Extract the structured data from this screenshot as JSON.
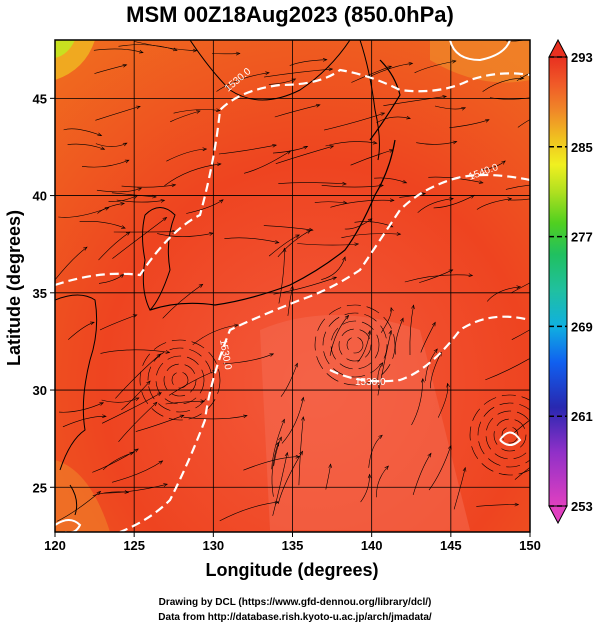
{
  "title": "MSM 00Z18Aug2023 (850.0hPa)",
  "x_axis": {
    "label": "Longitude (degrees)",
    "ticks": [
      {
        "value": 120,
        "label": "120"
      },
      {
        "value": 125,
        "label": "125"
      },
      {
        "value": 130,
        "label": "130"
      },
      {
        "value": 135,
        "label": "135"
      },
      {
        "value": 140,
        "label": "140"
      },
      {
        "value": 145,
        "label": "145"
      },
      {
        "value": 150,
        "label": "150"
      }
    ]
  },
  "y_axis": {
    "label": "Latitude  (degrees)",
    "ticks": [
      {
        "value": 25,
        "label": "25"
      },
      {
        "value": 30,
        "label": "30"
      },
      {
        "value": 35,
        "label": "35"
      },
      {
        "value": 40,
        "label": "40"
      },
      {
        "value": 45,
        "label": "45"
      }
    ]
  },
  "colorbar": {
    "min": 253,
    "max": 293,
    "ticks": [
      {
        "value": 293,
        "label": "293"
      },
      {
        "value": 285,
        "label": "285"
      },
      {
        "value": 277,
        "label": "277"
      },
      {
        "value": 269,
        "label": "269"
      },
      {
        "value": 261,
        "label": "261"
      },
      {
        "value": 253,
        "label": "253"
      }
    ],
    "colors": [
      "#e040c0",
      "#b040d0",
      "#3030b0",
      "#1060f0",
      "#10b0e0",
      "#20c0a0",
      "#20c060",
      "#40d020",
      "#a0e020",
      "#f0f020",
      "#f0c020",
      "#f08020",
      "#f05020",
      "#e83020"
    ]
  },
  "contour_labels": [
    {
      "text": "1530.0"
    },
    {
      "text": "1540.0"
    },
    {
      "text": "1530.0"
    },
    {
      "text": "1530.0"
    }
  ],
  "credits": {
    "line1": "Drawing by DCL (https://www.gfd-dennou.org/library/dcl/)",
    "line2": "Data from http://database.rish.kyoto-u.ac.jp/arch/jmadata/"
  }
}
